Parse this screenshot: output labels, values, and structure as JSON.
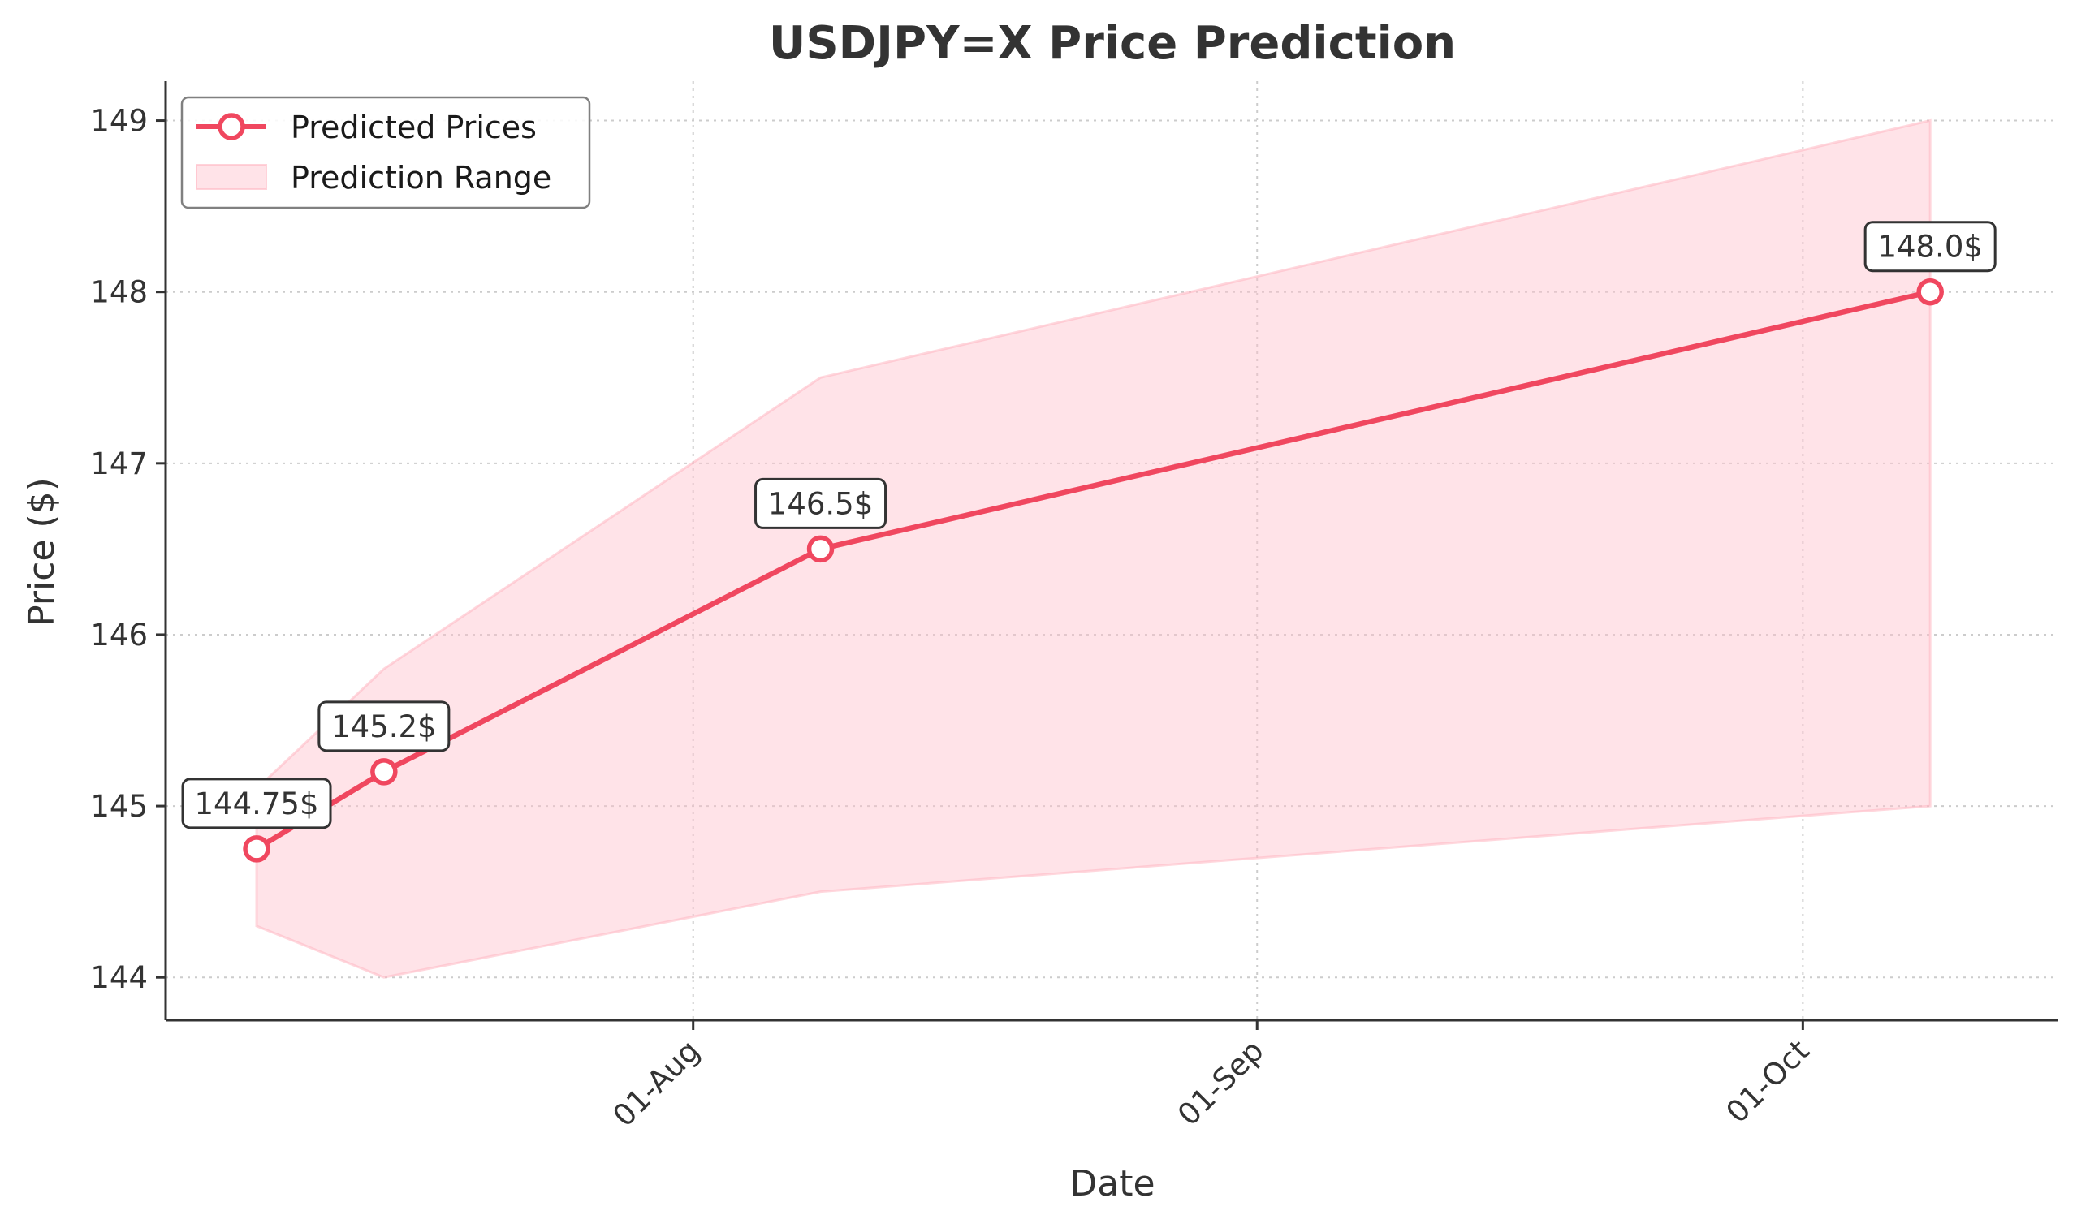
{
  "chart_data": {
    "type": "line",
    "title": "USDJPY=X Price Prediction",
    "xlabel": "Date",
    "ylabel": "Price ($)",
    "x_tick_labels": [
      {
        "date": "2024-08-01",
        "label": "01-Aug"
      },
      {
        "date": "2024-09-01",
        "label": "01-Sep"
      },
      {
        "date": "2024-10-01",
        "label": "01-Oct"
      }
    ],
    "y_ticks": [
      {
        "value": 144,
        "label": "144"
      },
      {
        "value": 145,
        "label": "145"
      },
      {
        "value": 146,
        "label": "146"
      },
      {
        "value": 147,
        "label": "147"
      },
      {
        "value": 148,
        "label": "148"
      },
      {
        "value": 149,
        "label": "149"
      }
    ],
    "xlim": [
      "2024-07-03",
      "2024-10-15"
    ],
    "ylim": [
      143.75,
      149.23
    ],
    "grid": true,
    "legend_position": "top-left",
    "series": [
      {
        "name": "Predicted Prices",
        "kind": "line-markers",
        "color": "#f0475f",
        "points": [
          {
            "x": "2024-07-08",
            "y": 144.75,
            "label": "144.75$"
          },
          {
            "x": "2024-07-15",
            "y": 145.2,
            "label": "145.2$"
          },
          {
            "x": "2024-08-08",
            "y": 146.5,
            "label": "146.5$"
          },
          {
            "x": "2024-10-08",
            "y": 148.0,
            "label": "148.0$"
          }
        ]
      },
      {
        "name": "Prediction Range",
        "kind": "band",
        "color": "#ffc0cb",
        "points": [
          {
            "x": "2024-07-08",
            "low": 144.3,
            "high": 145.1
          },
          {
            "x": "2024-07-15",
            "low": 144.0,
            "high": 145.8
          },
          {
            "x": "2024-08-08",
            "low": 144.5,
            "high": 147.5
          },
          {
            "x": "2024-10-08",
            "low": 145.0,
            "high": 149.0
          }
        ]
      }
    ]
  }
}
